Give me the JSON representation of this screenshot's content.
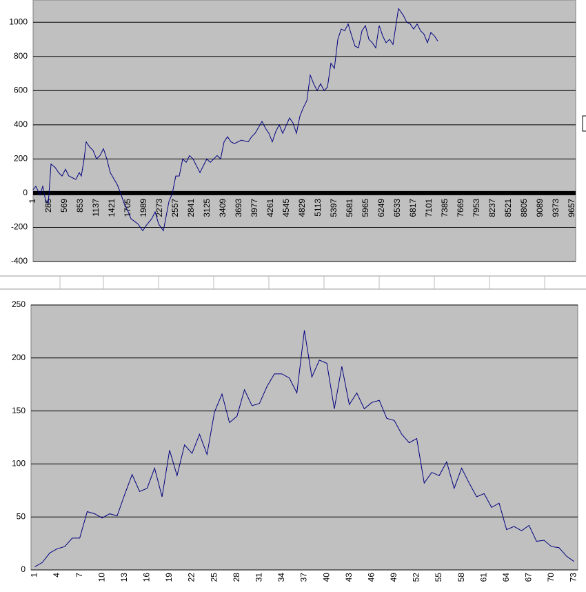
{
  "chart_data": [
    {
      "type": "line",
      "color": "#000080",
      "grid": true,
      "xlim": [
        1,
        9720
      ],
      "ylim": [
        -400,
        1130
      ],
      "yticks": [
        -400,
        -200,
        0,
        200,
        400,
        600,
        800,
        1000
      ],
      "xticks": [
        1,
        285,
        569,
        853,
        1137,
        1421,
        1705,
        1989,
        2273,
        2557,
        2841,
        3125,
        3409,
        3693,
        3977,
        4261,
        4545,
        4829,
        5113,
        5397,
        5681,
        5965,
        6249,
        6533,
        6817,
        7101,
        7385,
        7669,
        7953,
        8237,
        8521,
        8805,
        9089,
        9373,
        9657
      ],
      "x": [
        1,
        50,
        124,
        174,
        223,
        273,
        297,
        322,
        396,
        458,
        520,
        581,
        643,
        705,
        767,
        828,
        865,
        915,
        952,
        1014,
        1075,
        1137,
        1199,
        1261,
        1322,
        1384,
        1508,
        1569,
        1631,
        1693,
        1755,
        1878,
        1965,
        2026,
        2125,
        2187,
        2249,
        2335,
        2434,
        2496,
        2557,
        2619,
        2681,
        2743,
        2804,
        2866,
        2990,
        3051,
        3113,
        3175,
        3298,
        3360,
        3422,
        3484,
        3546,
        3607,
        3731,
        3854,
        3916,
        3978,
        4101,
        4163,
        4225,
        4286,
        4348,
        4410,
        4472,
        4595,
        4657,
        4719,
        4780,
        4842,
        4904,
        4966,
        5027,
        5089,
        5151,
        5213,
        5274,
        5336,
        5398,
        5460,
        5521,
        5583,
        5645,
        5708,
        5768,
        5830,
        5892,
        5954,
        6016,
        6077,
        6139,
        6201,
        6263,
        6324,
        6386,
        6448,
        6546,
        6633,
        6695,
        6756,
        6818,
        6880,
        6942,
        7003,
        7065,
        7127,
        7189,
        7250
      ],
      "values": [
        20,
        40,
        -10,
        40,
        -40,
        -60,
        50,
        170,
        150,
        120,
        100,
        140,
        100,
        90,
        80,
        120,
        100,
        200,
        300,
        270,
        250,
        200,
        220,
        260,
        200,
        120,
        50,
        0,
        -60,
        -100,
        -150,
        -180,
        -220,
        -190,
        -150,
        -110,
        -180,
        -220,
        -50,
        0,
        100,
        100,
        200,
        180,
        220,
        200,
        120,
        160,
        200,
        180,
        220,
        200,
        300,
        330,
        300,
        290,
        310,
        300,
        330,
        350,
        420,
        380,
        350,
        300,
        360,
        400,
        350,
        440,
        410,
        350,
        450,
        500,
        540,
        690,
        640,
        600,
        640,
        600,
        620,
        760,
        730,
        900,
        960,
        950,
        990,
        920,
        860,
        850,
        950,
        980,
        900,
        880,
        850,
        980,
        920,
        880,
        900,
        870,
        1080,
        1040,
        1000,
        990,
        960,
        990,
        950,
        930,
        880,
        940,
        920,
        890
      ]
    },
    {
      "type": "line",
      "color": "#000080",
      "grid": true,
      "ylim": [
        0,
        250
      ],
      "yticks": [
        0,
        50,
        100,
        150,
        200,
        250
      ],
      "categories": [
        1,
        null,
        null,
        4,
        null,
        null,
        7,
        null,
        null,
        10,
        null,
        null,
        13,
        null,
        null,
        16,
        null,
        null,
        19,
        null,
        null,
        22,
        null,
        null,
        25,
        null,
        null,
        28,
        null,
        null,
        31,
        null,
        null,
        34,
        null,
        null,
        37,
        null,
        null,
        40,
        null,
        null,
        43,
        null,
        null,
        46,
        null,
        null,
        49,
        null,
        null,
        52,
        null,
        null,
        55,
        null,
        null,
        58,
        null,
        null,
        61,
        null,
        null,
        64,
        null,
        null,
        67,
        null,
        null,
        70,
        null,
        null,
        73
      ],
      "values": [
        3,
        7,
        16,
        20,
        22,
        30,
        30,
        55,
        53,
        49,
        53,
        51,
        71,
        90,
        74,
        77,
        96,
        69,
        113,
        89,
        118,
        110,
        128,
        109,
        149,
        166,
        139,
        145,
        170,
        155,
        157,
        173,
        185,
        185,
        181,
        167,
        226,
        182,
        198,
        195,
        152,
        192,
        156,
        167,
        152,
        158,
        160,
        143,
        141,
        128,
        120,
        124,
        82,
        92,
        89,
        102,
        77,
        96,
        82,
        69,
        72,
        59,
        63,
        38,
        41,
        37,
        42,
        27,
        28,
        22,
        21,
        13,
        8
      ]
    }
  ]
}
